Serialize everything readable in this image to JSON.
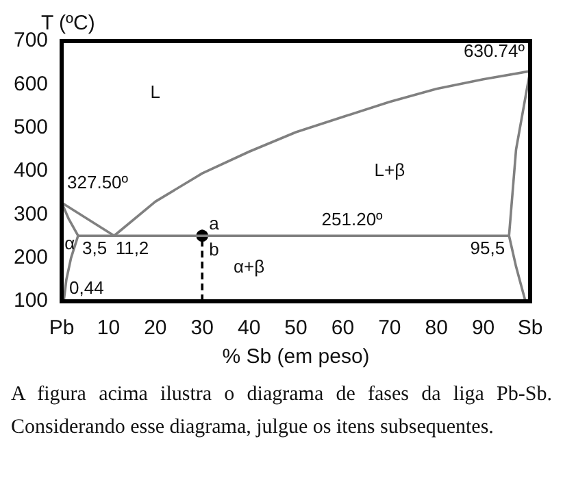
{
  "chart_data": {
    "type": "line",
    "ylabel": "T (ºC)",
    "xlabel": "% Sb (em peso)",
    "xlim": [
      0,
      100
    ],
    "xticks": [
      {
        "value": 0,
        "label": "Pb"
      },
      10,
      20,
      30,
      40,
      50,
      60,
      70,
      80,
      90,
      {
        "value": 100,
        "label": "Sb"
      }
    ],
    "ylim": [
      100,
      700
    ],
    "yticks": [
      100,
      200,
      300,
      400,
      500,
      600,
      700
    ],
    "grid": false,
    "legend": false,
    "marker": "none",
    "series": [
      {
        "color": "#808080",
        "x": [
          0,
          11.2
        ],
        "values": [
          327.5,
          251.2
        ]
      },
      {
        "color": "#808080",
        "x": [
          11.2,
          20,
          30,
          40,
          50,
          60,
          70,
          80,
          90,
          100
        ],
        "values": [
          251.2,
          330,
          395,
          445,
          490,
          525,
          560,
          590,
          612,
          630.74
        ]
      },
      {
        "color": "#808080",
        "x": [
          3.5,
          95.5
        ],
        "values": [
          251.2,
          251.2
        ]
      },
      {
        "color": "#808080",
        "x": [
          0,
          1.5,
          3.5,
          2,
          1,
          0.44
        ],
        "values": [
          327.5,
          290,
          251.2,
          200,
          150,
          100
        ]
      },
      {
        "color": "#808080",
        "x": [
          100,
          97,
          95.5,
          97,
          99
        ],
        "values": [
          630.74,
          450,
          251.2,
          180,
          100
        ]
      },
      {
        "color": "#000000",
        "line_style": "dashed",
        "x": [
          30,
          30
        ],
        "values": [
          100,
          265
        ]
      },
      {
        "type": "scatter",
        "marker": "circle",
        "color": "#000000",
        "x": [
          30
        ],
        "values": [
          251.2
        ]
      }
    ],
    "annotations": [
      {
        "text": "327.50º",
        "x": 0,
        "y": 327.5
      },
      {
        "text": "630.74º",
        "x": 100,
        "y": 630.74
      },
      {
        "text": "251.20º",
        "x": 62,
        "y": 251.2
      },
      {
        "text": "3,5",
        "x": 3.5,
        "y": 251.2
      },
      {
        "text": "11,2",
        "x": 11.2,
        "y": 251.2
      },
      {
        "text": "95,5",
        "x": 95.5,
        "y": 251.2
      },
      {
        "text": "0,44",
        "x": 0.44,
        "y": 100
      },
      {
        "text": "a",
        "x": 30,
        "y": 251.2
      },
      {
        "text": "b",
        "x": 30,
        "y": 251.2
      },
      "L",
      "L+β",
      "α+β",
      "α",
      "A figura acima ilustra o diagrama de fases da liga Pb-Sb. Considerando esse diagrama, julgue os itens subsequentes."
    ]
  }
}
